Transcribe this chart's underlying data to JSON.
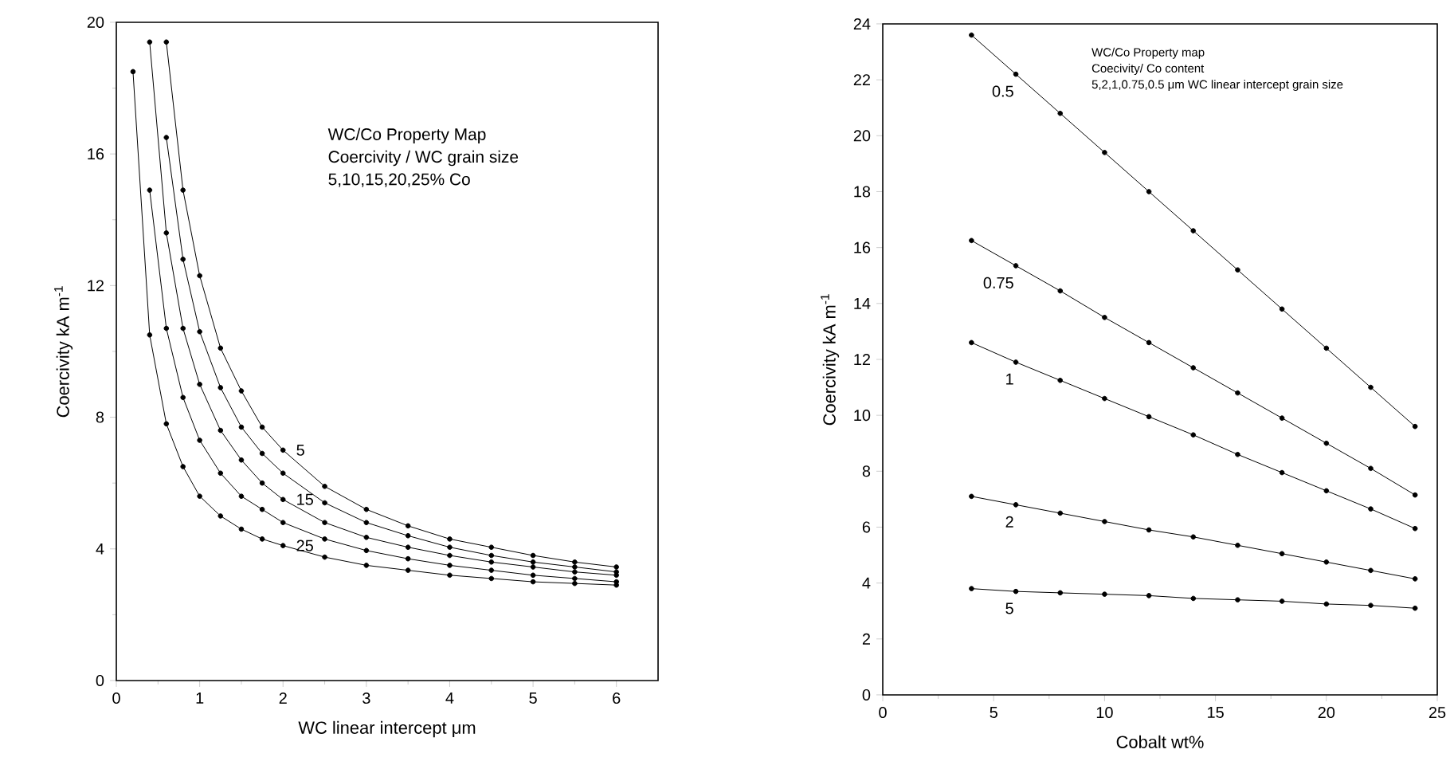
{
  "chart_data": [
    {
      "type": "line",
      "xlabel": "WC linear intercept    μm",
      "ylabel": "Coercivity    kA m$^{-1}$",
      "xlim": [
        0,
        6.5
      ],
      "ylim": [
        0,
        20
      ],
      "xticks": [
        0,
        {
          "value": 0.5,
          "label": null
        },
        1,
        {
          "value": 1.5,
          "label": null
        },
        2,
        {
          "value": 2.5,
          "label": null
        },
        3,
        {
          "value": 3.5,
          "label": null
        },
        4,
        {
          "value": 4.5,
          "label": null
        },
        5,
        {
          "value": 5.5,
          "label": null
        },
        6
      ],
      "yticks": [
        0,
        {
          "value": 2,
          "label": null
        },
        4,
        {
          "value": 6,
          "label": null
        },
        8,
        {
          "value": 10,
          "label": null
        },
        12,
        {
          "value": 14,
          "label": null
        },
        16,
        {
          "value": 18,
          "label": null
        },
        20
      ],
      "marker": "circle",
      "line_style": "solid",
      "grid": false,
      "legend": false,
      "series": [
        {
          "name": "5",
          "color": "#000000",
          "x": [
            0.6,
            0.8,
            1.0,
            1.25,
            1.5,
            1.75,
            2.0,
            2.5,
            3.0,
            3.5,
            4.0,
            4.5,
            5.0,
            5.5,
            6.0
          ],
          "values": [
            19.4,
            14.9,
            12.3,
            10.1,
            8.8,
            7.7,
            7.0,
            5.9,
            5.2,
            4.7,
            4.3,
            4.05,
            3.8,
            3.6,
            3.45
          ]
        },
        {
          "color": "#000000",
          "x": [
            0.6,
            0.8,
            1.0,
            1.25,
            1.5,
            1.75,
            2.0,
            2.5,
            3.0,
            3.5,
            4.0,
            4.5,
            5.0,
            5.5,
            6.0
          ],
          "values": [
            16.5,
            12.8,
            10.6,
            8.9,
            7.7,
            6.9,
            6.3,
            5.4,
            4.8,
            4.4,
            4.05,
            3.8,
            3.6,
            3.45,
            3.3
          ]
        },
        {
          "name": "15",
          "color": "#000000",
          "x": [
            0.4,
            0.6,
            0.8,
            1.0,
            1.25,
            1.5,
            1.75,
            2.0,
            2.5,
            3.0,
            3.5,
            4.0,
            4.5,
            5.0,
            5.5,
            6.0
          ],
          "values": [
            19.4,
            13.6,
            10.7,
            9.0,
            7.6,
            6.7,
            6.0,
            5.5,
            4.8,
            4.35,
            4.05,
            3.8,
            3.6,
            3.45,
            3.3,
            3.2
          ]
        },
        {
          "color": "#000000",
          "x": [
            0.4,
            0.6,
            0.8,
            1.0,
            1.25,
            1.5,
            1.75,
            2.0,
            2.5,
            3.0,
            3.5,
            4.0,
            4.5,
            5.0,
            5.5,
            6.0
          ],
          "values": [
            14.9,
            10.7,
            8.6,
            7.3,
            6.3,
            5.6,
            5.2,
            4.8,
            4.3,
            3.95,
            3.7,
            3.5,
            3.35,
            3.2,
            3.1,
            3.0
          ]
        },
        {
          "name": "25",
          "color": "#000000",
          "x": [
            0.2,
            0.4,
            0.6,
            0.8,
            1.0,
            1.25,
            1.5,
            1.75,
            2.0,
            2.5,
            3.0,
            3.5,
            4.0,
            4.5,
            5.0,
            5.5,
            6.0
          ],
          "values": [
            18.5,
            10.5,
            7.8,
            6.5,
            5.6,
            5.0,
            4.6,
            4.3,
            4.1,
            3.75,
            3.5,
            3.35,
            3.2,
            3.1,
            3.0,
            2.95,
            2.9
          ]
        }
      ],
      "annotations": [
        "WC/Co Property Map",
        "Coercivity / WC grain size",
        "5,10,15,20,25% Co"
      ]
    },
    {
      "type": "line",
      "xlabel": "Cobalt    wt%",
      "ylabel": "Coercivity    kA m$^{-1}$",
      "xlim": [
        0,
        25
      ],
      "ylim": [
        0,
        24
      ],
      "xticks": [
        0,
        {
          "value": 2.5,
          "label": null
        },
        5,
        {
          "value": 7.5,
          "label": null
        },
        10,
        {
          "value": 12.5,
          "label": null
        },
        15,
        {
          "value": 17.5,
          "label": null
        },
        20,
        {
          "value": 22.5,
          "label": null
        },
        25
      ],
      "yticks": [
        0,
        2,
        4,
        6,
        8,
        10,
        12,
        14,
        16,
        18,
        20,
        22,
        24
      ],
      "marker": "circle",
      "line_style": "solid",
      "grid": false,
      "legend": false,
      "x": [
        4,
        6,
        8,
        10,
        12,
        14,
        16,
        18,
        20,
        22,
        24
      ],
      "series": [
        {
          "name": "0.5",
          "color": "#000000",
          "values": [
            23.6,
            22.2,
            20.8,
            19.4,
            18.0,
            16.6,
            15.2,
            13.8,
            12.4,
            11.0,
            9.6
          ]
        },
        {
          "name": "0.75",
          "color": "#000000",
          "values": [
            16.25,
            15.35,
            14.45,
            13.5,
            12.6,
            11.7,
            10.8,
            9.9,
            9.0,
            8.1,
            7.15
          ]
        },
        {
          "name": "1",
          "color": "#000000",
          "values": [
            12.6,
            11.9,
            11.25,
            10.6,
            9.95,
            9.3,
            8.6,
            7.95,
            7.3,
            6.65,
            5.95
          ]
        },
        {
          "name": "2",
          "color": "#000000",
          "values": [
            7.1,
            6.8,
            6.5,
            6.2,
            5.9,
            5.65,
            5.35,
            5.05,
            4.75,
            4.45,
            4.15
          ]
        },
        {
          "name": "5",
          "color": "#000000",
          "values": [
            3.8,
            3.7,
            3.65,
            3.6,
            3.55,
            3.45,
            3.4,
            3.35,
            3.25,
            3.2,
            3.1
          ]
        }
      ],
      "annotations": [
        "WC/Co Property map",
        "Coecivity/ Co content",
        "5,2,1,0.75,0.5 μm WC linear intercept grain size"
      ]
    }
  ]
}
